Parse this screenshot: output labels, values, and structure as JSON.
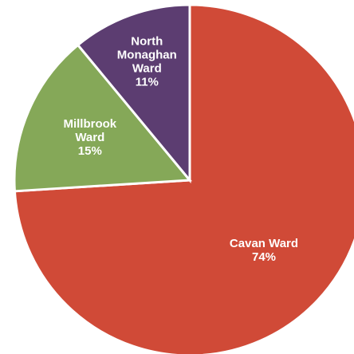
{
  "chart_data": {
    "type": "pie",
    "title": "",
    "start_angle_deg": 0,
    "direction": "clockwise",
    "legend": "none",
    "slices": [
      {
        "name": "Cavan Ward",
        "label_lines": [
          "Cavan Ward"
        ],
        "value": 74,
        "percent_label": "74%",
        "color": "#d04a37",
        "label_color": "#ffffff"
      },
      {
        "name": "Millbrook Ward",
        "label_lines": [
          "Millbrook",
          "Ward"
        ],
        "value": 15,
        "percent_label": "15%",
        "color": "#85a858",
        "label_color": "#1b1b1b"
      },
      {
        "name": "North Monaghan Ward",
        "label_lines": [
          "North",
          "Monaghan",
          "Ward"
        ],
        "value": 11,
        "percent_label": "11%",
        "color": "#5c3d71",
        "label_color": "#ffffff"
      }
    ]
  }
}
